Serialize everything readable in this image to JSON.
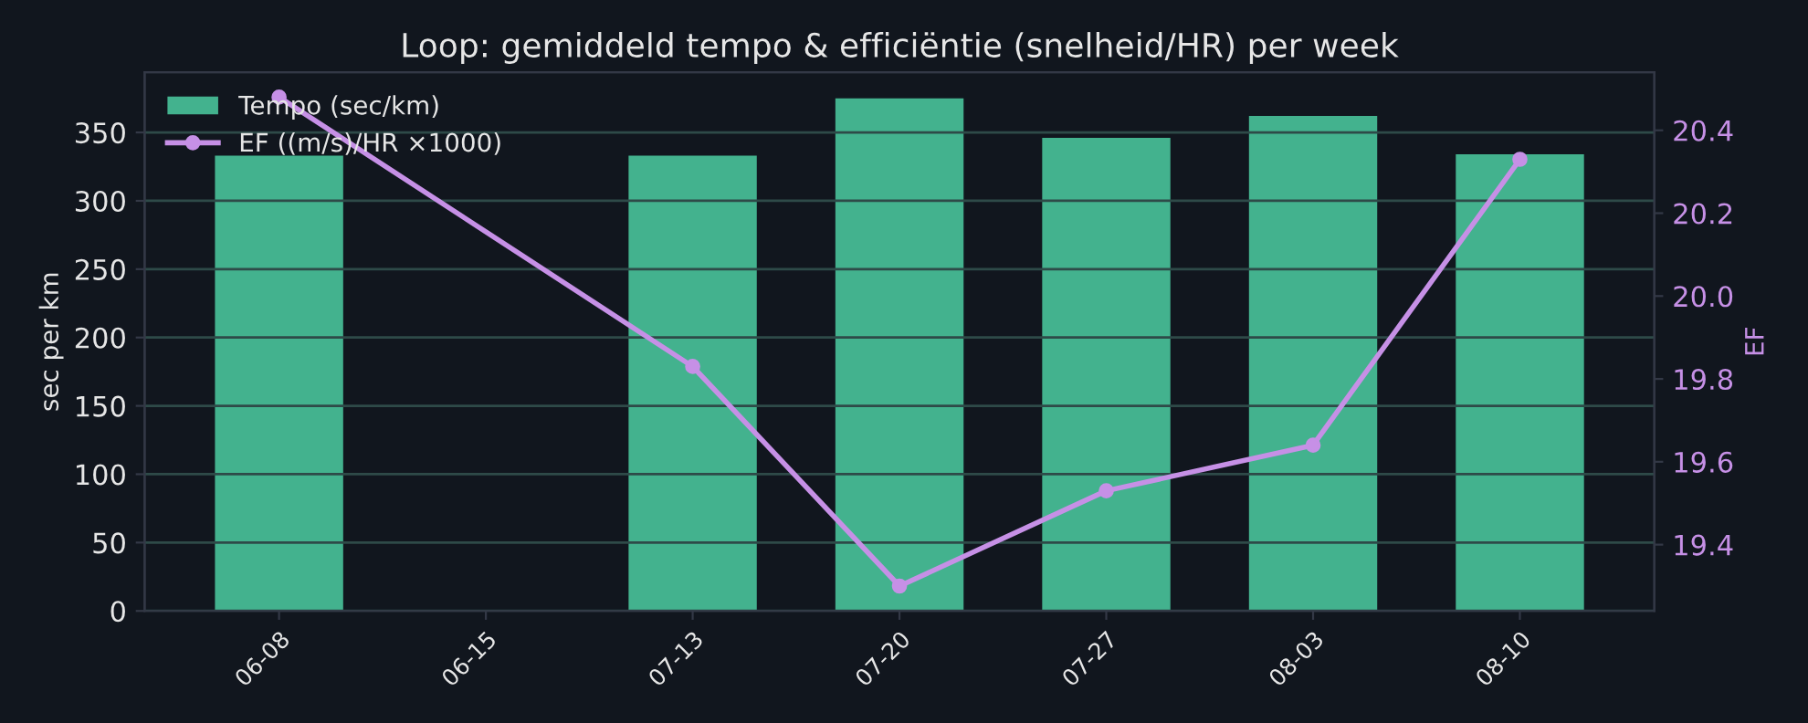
{
  "chart_data": {
    "type": "bar",
    "title": "Loop: gemiddeld tempo & efficiëntie (snelheid/HR) per week",
    "categories": [
      "06-08",
      "06-15",
      "07-13",
      "07-20",
      "07-27",
      "08-03",
      "08-10"
    ],
    "series": [
      {
        "name": "Tempo (sec/km)",
        "color": "#43b28e",
        "values": [
          333,
          null,
          333,
          375,
          346,
          362,
          334
        ]
      },
      {
        "name": "EF ((m/s)/HR ×1000)",
        "type": "line",
        "axis": "y2",
        "color": "#c690e6",
        "marker": "circle",
        "values": [
          20.48,
          null,
          19.83,
          19.3,
          19.53,
          19.64,
          20.33
        ]
      }
    ],
    "ylabel": "sec per km",
    "y2label": "EF",
    "ylim": [
      0,
      394
    ],
    "yticks": [
      0,
      50,
      100,
      150,
      200,
      250,
      300,
      350
    ],
    "y2lim": [
      19.24,
      20.54
    ],
    "y2ticks": [
      {
        "value": 19.4,
        "label": "19.4"
      },
      {
        "value": 19.6,
        "label": "19.6"
      },
      {
        "value": 19.8,
        "label": "19.8"
      },
      {
        "value": 20.0,
        "label": "20.0"
      },
      {
        "value": 20.2,
        "label": "20.2"
      },
      {
        "value": 20.4,
        "label": "20.4"
      }
    ],
    "grid": "y",
    "legend": "top left"
  }
}
